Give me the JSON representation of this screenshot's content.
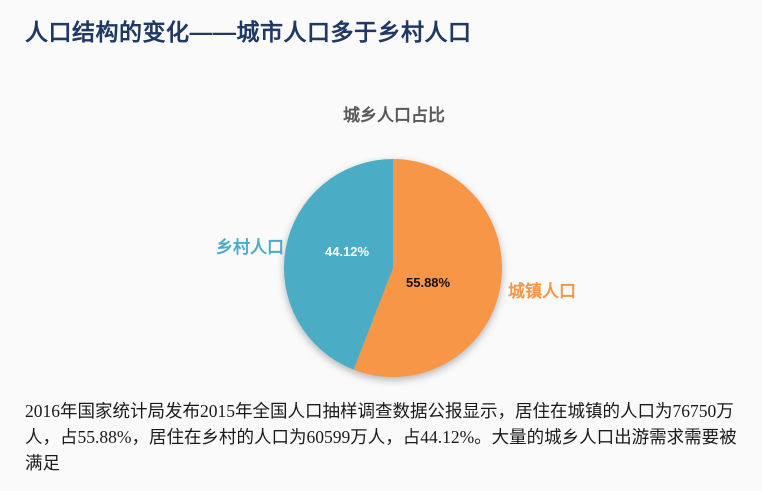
{
  "page": {
    "title": "人口结构的变化——城市人口多于乡村人口",
    "description": "2016年国家统计局发布2015年全国人口抽样调查数据公报显示，居住在城镇的人口为76750万人，占55.88%，居住在乡村的人口为60599万人，占44.12%。大量的城乡人口出游需求需要被满足"
  },
  "colors": {
    "heading_navy": "#1F3864",
    "chart_title_gray": "#595959",
    "urban_orange": "#F79646",
    "rural_teal": "#4BACC6",
    "background": "#FAFAFA",
    "body_text": "#1A1A1A"
  },
  "chart_data": {
    "type": "pie",
    "title": "城乡人口占比",
    "start_angle_deg": 0,
    "direction": "clockwise",
    "legend_position": "none",
    "slices": [
      {
        "id": "urban",
        "label": "城镇人口",
        "value": 55.88,
        "display": "55.88%",
        "color": "#F79646",
        "population_wan": 76750
      },
      {
        "id": "rural",
        "label": "乡村人口",
        "value": 44.12,
        "display": "44.12%",
        "color": "#4BACC6",
        "population_wan": 60599
      }
    ]
  }
}
